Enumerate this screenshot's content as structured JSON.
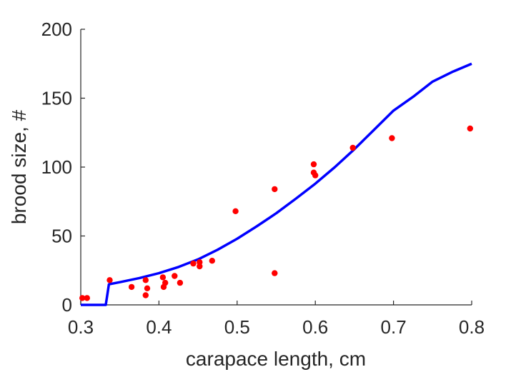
{
  "chart_data": {
    "type": "scatter",
    "xlabel": "carapace length, cm",
    "ylabel": "brood size, #",
    "xlim": [
      0.3,
      0.8
    ],
    "ylim": [
      0,
      200
    ],
    "xticks": [
      0.3,
      0.4,
      0.5,
      0.6,
      0.7,
      0.8
    ],
    "xtick_labels": [
      "0.3",
      "0.4",
      "0.5",
      "0.6",
      "0.7",
      "0.8"
    ],
    "yticks": [
      0,
      50,
      100,
      150,
      200
    ],
    "ytick_labels": [
      "0",
      "50",
      "100",
      "150",
      "200"
    ],
    "grid": false,
    "series": [
      {
        "kind": "scatter",
        "color": "#ff0000",
        "points": [
          [
            0.302,
            5
          ],
          [
            0.308,
            5
          ],
          [
            0.337,
            18
          ],
          [
            0.365,
            13
          ],
          [
            0.383,
            18
          ],
          [
            0.383,
            7
          ],
          [
            0.385,
            12
          ],
          [
            0.405,
            20
          ],
          [
            0.406,
            13
          ],
          [
            0.408,
            16
          ],
          [
            0.42,
            21
          ],
          [
            0.427,
            16
          ],
          [
            0.444,
            30
          ],
          [
            0.452,
            31
          ],
          [
            0.452,
            28
          ],
          [
            0.468,
            32
          ],
          [
            0.498,
            68
          ],
          [
            0.548,
            84
          ],
          [
            0.548,
            23
          ],
          [
            0.598,
            102
          ],
          [
            0.598,
            96
          ],
          [
            0.6,
            94
          ],
          [
            0.648,
            114
          ],
          [
            0.698,
            121
          ],
          [
            0.798,
            128
          ]
        ]
      },
      {
        "kind": "line",
        "color": "#0000ff",
        "points": [
          [
            0.3,
            0
          ],
          [
            0.332,
            0
          ],
          [
            0.336,
            15
          ],
          [
            0.35,
            16.5
          ],
          [
            0.375,
            19.5
          ],
          [
            0.4,
            23
          ],
          [
            0.425,
            27.5
          ],
          [
            0.45,
            33
          ],
          [
            0.475,
            40
          ],
          [
            0.5,
            48
          ],
          [
            0.525,
            57
          ],
          [
            0.55,
            66.5
          ],
          [
            0.575,
            77
          ],
          [
            0.6,
            88
          ],
          [
            0.625,
            100
          ],
          [
            0.65,
            113
          ],
          [
            0.675,
            127
          ],
          [
            0.7,
            141
          ],
          [
            0.725,
            151
          ],
          [
            0.75,
            162
          ],
          [
            0.775,
            169
          ],
          [
            0.8,
            175
          ]
        ]
      }
    ]
  }
}
